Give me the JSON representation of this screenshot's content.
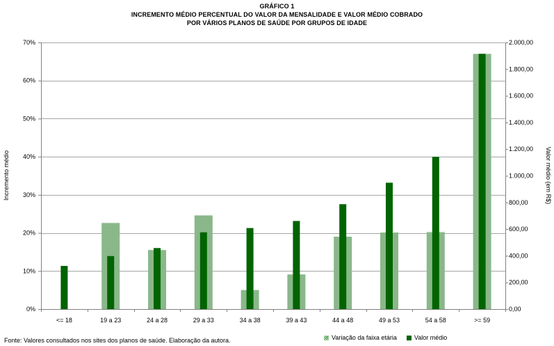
{
  "header": {
    "line1": "GRÁFICO 1",
    "line2": "INCREMENTO MÉDIO PERCENTUAL  DO VALOR DA  MENSALIDADE E VALOR MÉDIO COBRADO",
    "line3": "POR VÁRIOS PLANOS DE SAÚDE POR GRUPOS DE IDADE"
  },
  "footer": {
    "source": "Fonte: Valores consultados nos sites dos planos de saúde. Elaboração da autora."
  },
  "colors": {
    "dark_green": "#006400",
    "hatch_green": "#2e7d2e",
    "hatch_light": "#e6f2e6"
  },
  "chart_data": {
    "type": "bar",
    "title": "",
    "categories": [
      "<= 18",
      "19 a 23",
      "24 a 28",
      "29 a 33",
      "34 a 38",
      "39 a 43",
      "44 a 48",
      "49 a 53",
      "54 a 58",
      ">= 59"
    ],
    "ylabel": "Incremento médio",
    "y2label": "Valor médio (em R$)",
    "ylim": [
      0,
      70
    ],
    "y2lim": [
      0,
      2000
    ],
    "yticks": [
      "0%",
      "10%",
      "20%",
      "30%",
      "40%",
      "50%",
      "60%",
      "70%"
    ],
    "y2ticks": [
      "0,00",
      "200,00",
      "400,00",
      "600,00",
      "800,00",
      "1.000,00",
      "1.200,00",
      "1.400,00",
      "1.600,00",
      "1.800,00",
      "2.000,00"
    ],
    "grid": "horizontal",
    "legend_position": "bottom-right",
    "series": [
      {
        "name": "Variação da faixa etária",
        "axis": "left",
        "unit": "%",
        "style": "hatched",
        "values": [
          0,
          22.6,
          15.5,
          24.6,
          5.0,
          9.1,
          19.0,
          20.1,
          20.2,
          67.0
        ]
      },
      {
        "name": "Valor médio",
        "axis": "right",
        "unit": "R$",
        "style": "solid",
        "values": [
          324,
          398,
          458,
          576,
          608,
          661,
          787,
          948,
          1142,
          1915
        ]
      }
    ]
  }
}
